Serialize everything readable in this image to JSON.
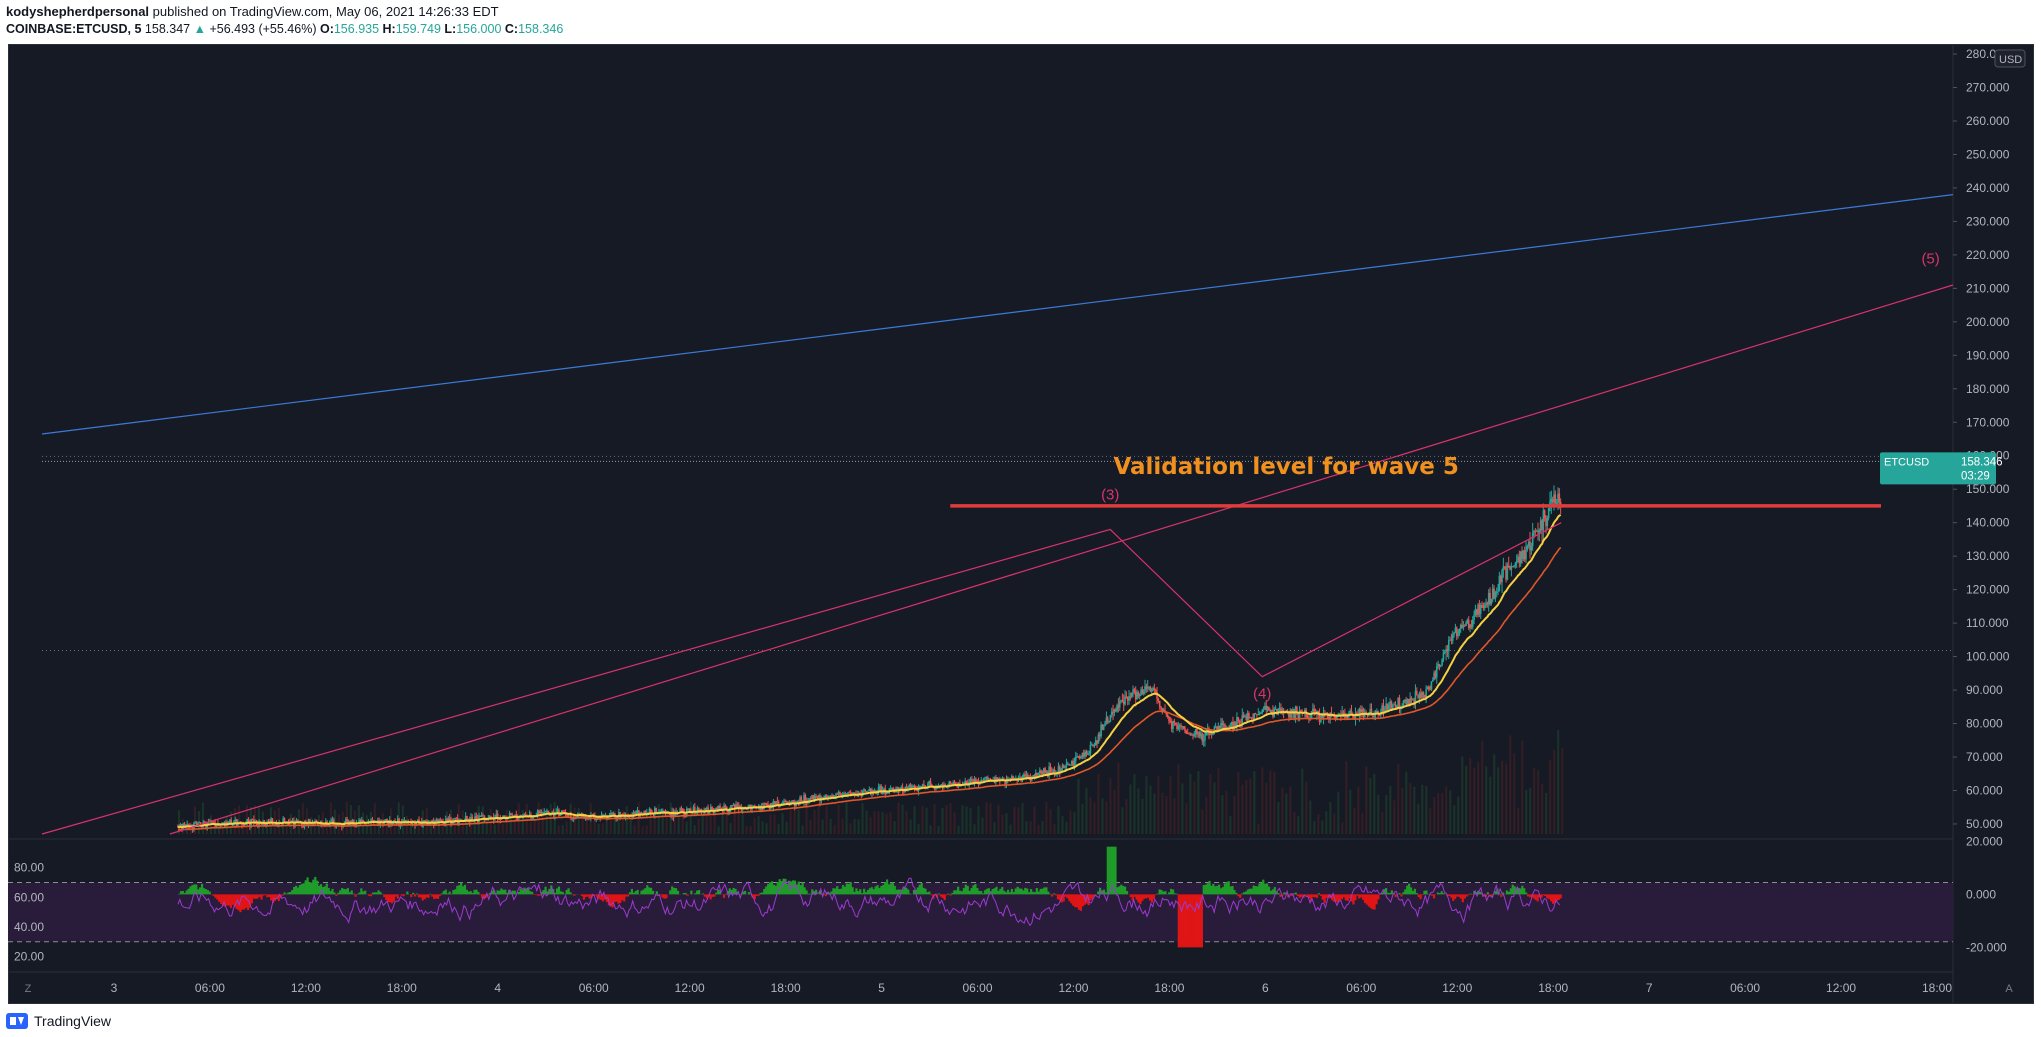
{
  "header": {
    "author": "kodyshepherdpersonal",
    "published_text": "published on TradingView.com, May 06, 2021 14:26:33 EDT",
    "symbol": "COINBASE:ETCUSD, 5",
    "last_price": "158.347",
    "change": "+56.493 (+55.46%)",
    "open_label": "O:",
    "open": "156.935",
    "high_label": "H:",
    "high": "159.749",
    "low_label": "L:",
    "low": "156.000",
    "close_label": "C:",
    "close": "158.346"
  },
  "footer": {
    "brand": "TradingView"
  },
  "colors": {
    "background": "#161a25",
    "up": "#26a69a",
    "down": "#ef5350",
    "ema_fast": "#f5d142",
    "ema_slow": "#e0572a",
    "trendline_blue": "#3d7ad6",
    "trendline_pink": "#d8336b",
    "validation": "#e03c3c",
    "annotation": "#f0901e",
    "wave_label": "#d8336b",
    "oscillator": "#9c3ad0",
    "hist_up": "#1f9c2a",
    "hist_down": "#e01515"
  },
  "chart_data": {
    "type": "candlestick",
    "symbol": "ETCUSD",
    "price_axis": {
      "currency": "USD",
      "ticks": [
        "50.000",
        "60.000",
        "70.000",
        "80.000",
        "90.000",
        "100.000",
        "110.000",
        "120.000",
        "130.000",
        "140.000",
        "150.000",
        "160.000",
        "170.000",
        "180.000",
        "190.000",
        "200.000",
        "210.000",
        "220.000",
        "230.000",
        "240.000",
        "250.000",
        "260.000",
        "270.000",
        "280.000"
      ],
      "tick_values": [
        50,
        60,
        70,
        80,
        90,
        100,
        110,
        120,
        130,
        140,
        150,
        160,
        170,
        180,
        190,
        200,
        210,
        220,
        230,
        240,
        250,
        260,
        270,
        280
      ],
      "range": [
        47,
        283
      ]
    },
    "time_axis": {
      "labels": [
        "3",
        "06:00",
        "12:00",
        "18:00",
        "4",
        "06:00",
        "12:00",
        "18:00",
        "5",
        "06:00",
        "12:00",
        "18:00",
        "6",
        "06:00",
        "12:00",
        "18:00",
        "7",
        "06:00",
        "12:00",
        "18:00"
      ],
      "label_hours": [
        0,
        6,
        12,
        18,
        24,
        30,
        36,
        42,
        48,
        54,
        60,
        66,
        72,
        78,
        84,
        90,
        96,
        102,
        108,
        114
      ],
      "range_hours": [
        -4.5,
        115
      ]
    },
    "current_price_label": {
      "symbol": "ETCUSD",
      "price": "158.346",
      "countdown": "03:29"
    },
    "price_path": [
      [
        4,
        49.5
      ],
      [
        8,
        50.5
      ],
      [
        14,
        50.2
      ],
      [
        20,
        50.6
      ],
      [
        24,
        52
      ],
      [
        27,
        53.5
      ],
      [
        30,
        51.8
      ],
      [
        34,
        53.5
      ],
      [
        40,
        55
      ],
      [
        45,
        58.5
      ],
      [
        50,
        61
      ],
      [
        55,
        63
      ],
      [
        58,
        65
      ],
      [
        60,
        68
      ],
      [
        61,
        72
      ],
      [
        62,
        80
      ],
      [
        63,
        87
      ],
      [
        64,
        89.5
      ],
      [
        65,
        90
      ],
      [
        66,
        80
      ],
      [
        68,
        76
      ],
      [
        70,
        80
      ],
      [
        72,
        84
      ],
      [
        74,
        83
      ],
      [
        76,
        82
      ],
      [
        79,
        83
      ],
      [
        82,
        89
      ],
      [
        84,
        108
      ],
      [
        85,
        112
      ],
      [
        86,
        117
      ],
      [
        87,
        125
      ],
      [
        88,
        130
      ],
      [
        89,
        138
      ],
      [
        90,
        147
      ]
    ],
    "wave_labels": [
      {
        "text": "(3)",
        "hour": 62.3,
        "price": 147
      },
      {
        "text": "(4)",
        "hour": 71.8,
        "price": 87.5
      },
      {
        "text": "(5)",
        "hour": 113.6,
        "price": 217.5
      }
    ],
    "annotations": [
      {
        "text": "Validation level for wave 5",
        "hour": 73.3,
        "price": 154.5
      }
    ],
    "lines": [
      {
        "name": "blue-trendline",
        "points": [
          [
            -4.5,
            166.5
          ],
          [
            115,
            238
          ]
        ]
      },
      {
        "name": "pink-trendline-lower",
        "points": [
          [
            3.5,
            47
          ],
          [
            115,
            211
          ]
        ]
      },
      {
        "name": "wave-line",
        "points": [
          [
            -4.5,
            47
          ],
          [
            62.3,
            138
          ],
          [
            71.8,
            94
          ],
          [
            90.5,
            140
          ]
        ]
      },
      {
        "name": "validation-level",
        "points": [
          [
            52.3,
            145
          ],
          [
            110.5,
            145
          ]
        ]
      }
    ],
    "oscillator": {
      "left_ticks": [
        "80.00",
        "60.00",
        "40.00",
        "20.00"
      ],
      "right_ticks": [
        "20.000",
        "0.000",
        "-20.000"
      ],
      "left_values": [
        80,
        60,
        40,
        20
      ],
      "right_values": [
        20,
        0,
        -20
      ],
      "range": [
        15,
        96
      ],
      "bands": [
        70,
        30
      ]
    }
  }
}
